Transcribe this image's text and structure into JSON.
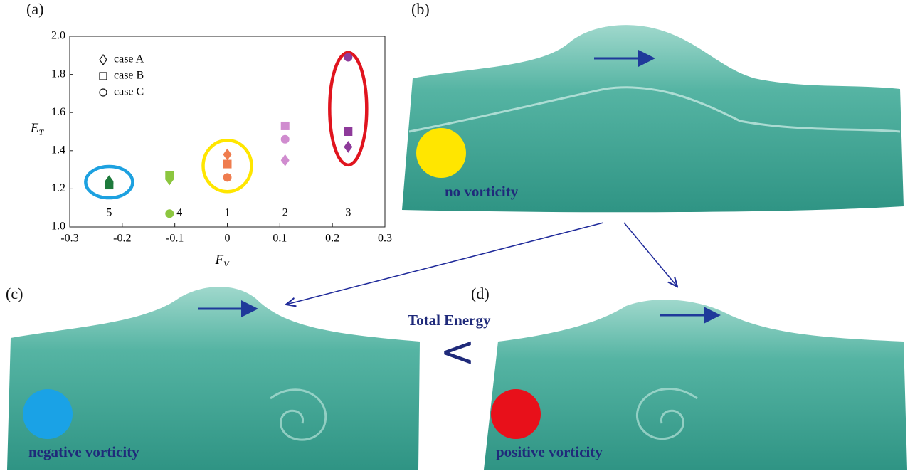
{
  "chart_data": {
    "type": "scatter",
    "panel_label": "(a)",
    "xlabel": {
      "main": "F",
      "sub": "V"
    },
    "ylabel": {
      "main": "E",
      "sub": "T"
    },
    "x": [
      -0.225,
      -0.11,
      0,
      0.11,
      0.23
    ],
    "group_labels": [
      "5",
      "4",
      "1",
      "2",
      "3"
    ],
    "point_colors": [
      "#1e7a3c",
      "#8cc63f",
      "#ef7c4e",
      "#d08ccf",
      "#8e3a9a"
    ],
    "series": [
      {
        "name": "case A",
        "marker": "diamond",
        "values": [
          1.24,
          1.25,
          1.38,
          1.35,
          1.42
        ]
      },
      {
        "name": "case B",
        "marker": "square",
        "values": [
          1.22,
          1.27,
          1.33,
          1.53,
          1.5
        ]
      },
      {
        "name": "case C",
        "marker": "circle",
        "values": [
          1.23,
          1.07,
          1.26,
          1.46,
          1.89
        ]
      }
    ],
    "xlim": [
      -0.3,
      0.3
    ],
    "xticks": [
      -0.3,
      -0.2,
      -0.1,
      0,
      0.1,
      0.2,
      0.3
    ],
    "ylim": [
      1.0,
      2.0
    ],
    "yticks": [
      {
        "value": 1.0,
        "label": "1.0"
      },
      1.2,
      1.4,
      1.6,
      1.8,
      {
        "value": 2.0,
        "label": "2.0"
      }
    ]
  },
  "panels": {
    "b": {
      "label": "(b)",
      "caption": "no vorticity"
    },
    "c": {
      "label": "(c)",
      "caption": "negative vorticity"
    },
    "d": {
      "label": "(d)",
      "caption": "positive vorticity"
    },
    "comparison": {
      "title": "Total Energy",
      "symbol": "<"
    }
  }
}
